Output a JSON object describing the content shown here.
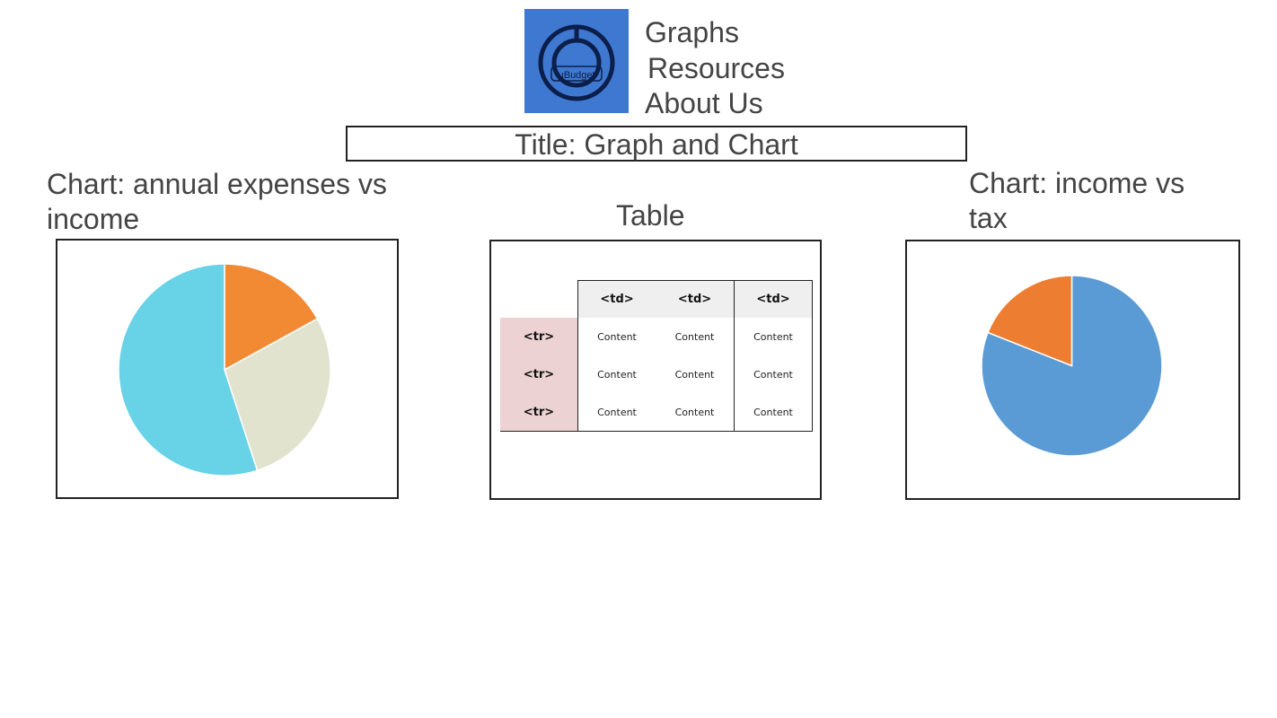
{
  "nav": {
    "logo_text": "μBudget",
    "items": [
      "Graphs",
      "Resources",
      "About Us"
    ]
  },
  "page_title": "Title: Graph and Chart",
  "headings": {
    "left_chart": "Chart: annual expenses vs income",
    "table": "Table",
    "right_chart": "Chart: income vs tax"
  },
  "table": {
    "header": [
      "<td>",
      "<td>",
      "<td>"
    ],
    "rows": [
      {
        "label": "<tr>",
        "cells": [
          "Content",
          "Content",
          "Content"
        ]
      },
      {
        "label": "<tr>",
        "cells": [
          "Content",
          "Content",
          "Content"
        ]
      },
      {
        "label": "<tr>",
        "cells": [
          "Content",
          "Content",
          "Content"
        ]
      }
    ]
  },
  "colors": {
    "logo_bg": "#3f78d0",
    "logo_ink": "#0b1f4a"
  },
  "chart_data": [
    {
      "type": "pie",
      "values": [
        17,
        28,
        55
      ],
      "colors": [
        "#f28a33",
        "#e1e3cf",
        "#68d2e6"
      ]
    },
    {
      "type": "pie",
      "values": [
        81,
        19
      ],
      "colors": [
        "#5b9bd5",
        "#ed7d31"
      ]
    }
  ]
}
